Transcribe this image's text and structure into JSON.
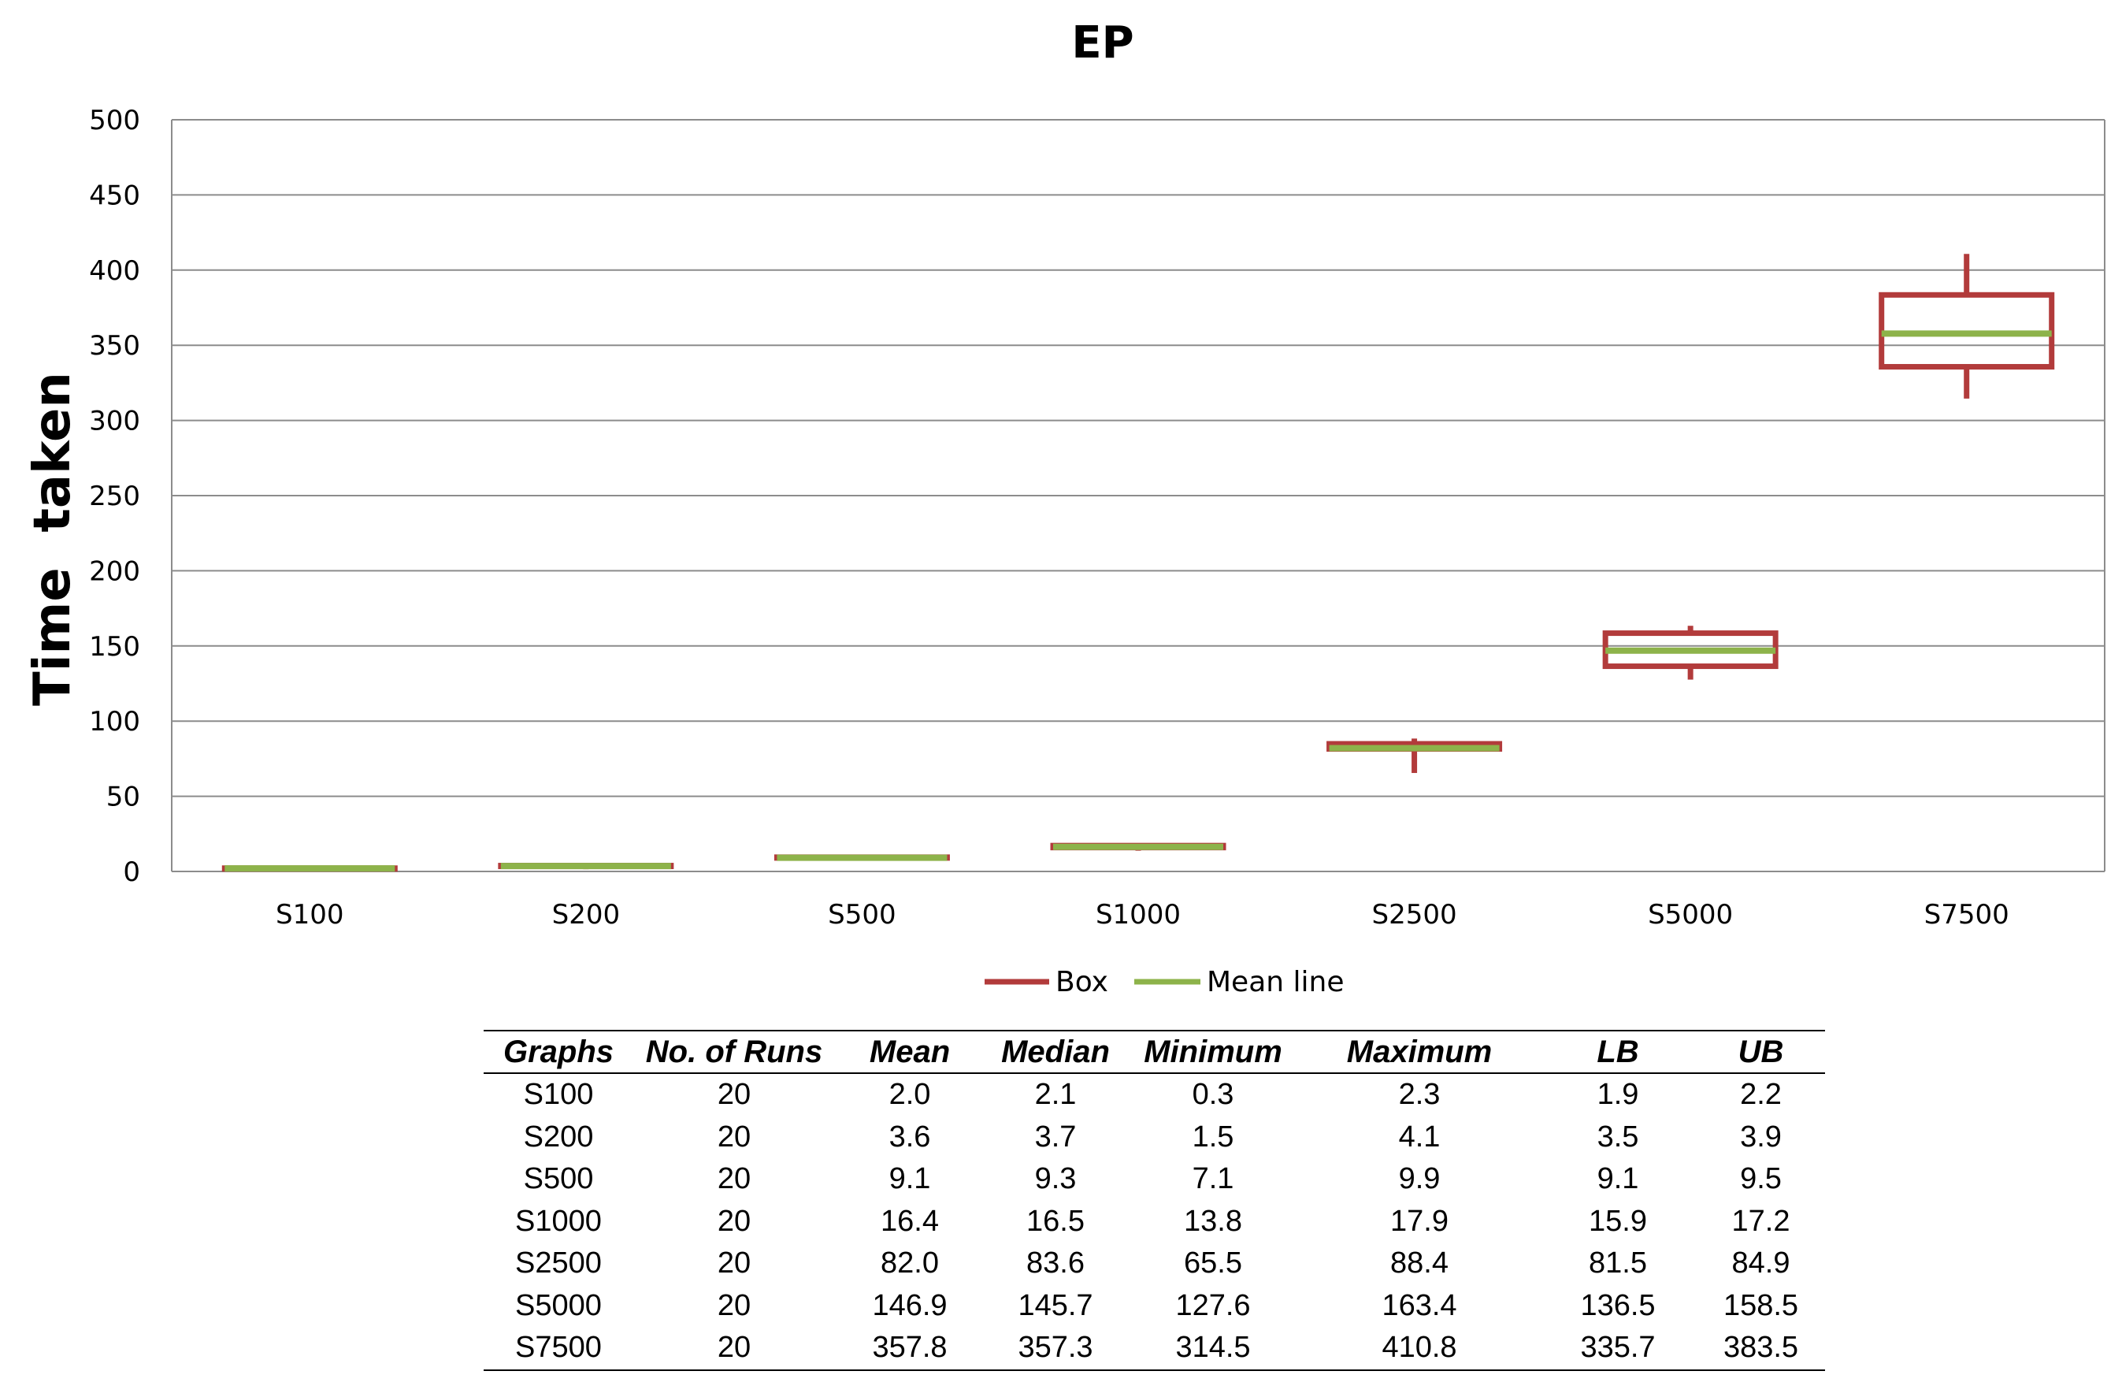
{
  "chart_data": {
    "type": "box",
    "title": "EP",
    "ylabel": "Time  taken",
    "xlabel": "",
    "ylim": [
      0,
      500
    ],
    "yticks": [
      0,
      50,
      100,
      150,
      200,
      250,
      300,
      350,
      400,
      450,
      500
    ],
    "grid": true,
    "categories": [
      "S100",
      "S200",
      "S500",
      "S1000",
      "S2500",
      "S5000",
      "S7500"
    ],
    "series": [
      {
        "name": "Box",
        "color": "#b23b3b",
        "lb": [
          1.9,
          3.5,
          9.1,
          15.9,
          81.5,
          136.5,
          335.7
        ],
        "ub": [
          2.2,
          3.9,
          9.5,
          17.2,
          84.9,
          158.5,
          383.5
        ],
        "min": [
          0.3,
          1.5,
          7.1,
          13.8,
          65.5,
          127.6,
          314.5
        ],
        "max": [
          2.3,
          4.1,
          9.9,
          17.9,
          88.4,
          163.4,
          410.8
        ]
      },
      {
        "name": "Mean line",
        "color": "#8db34a",
        "values": [
          2.0,
          3.6,
          9.1,
          16.4,
          82.0,
          146.9,
          357.8
        ]
      }
    ],
    "legend_position": "bottom"
  },
  "table": {
    "headers": [
      "Graphs",
      "No. of Runs",
      "Mean",
      "Median",
      "Minimum",
      "Maximum",
      "LB",
      "UB"
    ],
    "rows": [
      [
        "S100",
        "20",
        "2.0",
        "2.1",
        "0.3",
        "2.3",
        "1.9",
        "2.2"
      ],
      [
        "S200",
        "20",
        "3.6",
        "3.7",
        "1.5",
        "4.1",
        "3.5",
        "3.9"
      ],
      [
        "S500",
        "20",
        "9.1",
        "9.3",
        "7.1",
        "9.9",
        "9.1",
        "9.5"
      ],
      [
        "S1000",
        "20",
        "16.4",
        "16.5",
        "13.8",
        "17.9",
        "15.9",
        "17.2"
      ],
      [
        "S2500",
        "20",
        "82.0",
        "83.6",
        "65.5",
        "88.4",
        "81.5",
        "84.9"
      ],
      [
        "S5000",
        "20",
        "146.9",
        "145.7",
        "127.6",
        "163.4",
        "136.5",
        "158.5"
      ],
      [
        "S7500",
        "20",
        "357.8",
        "357.3",
        "314.5",
        "410.8",
        "335.7",
        "383.5"
      ]
    ]
  }
}
